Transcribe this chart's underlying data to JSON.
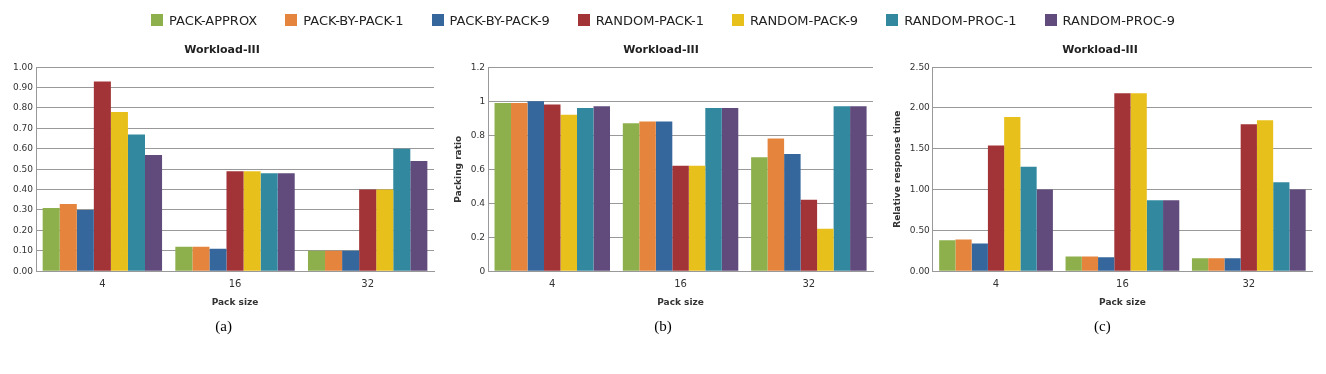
{
  "chart_data": [
    {
      "type": "bar",
      "title": "Workload-III",
      "xlabel": "Pack size",
      "categories": [
        "4",
        "16",
        "32"
      ],
      "ylim": [
        0,
        1
      ],
      "yticks": [
        {
          "value": 0,
          "label": "0.00"
        },
        {
          "value": 0.1,
          "label": "0.10"
        },
        {
          "value": 0.2,
          "label": "0.20"
        },
        {
          "value": 0.3,
          "label": "0.30"
        },
        {
          "value": 0.4,
          "label": "0.40"
        },
        {
          "value": 0.5,
          "label": "0.50"
        },
        {
          "value": 0.6,
          "label": "0.60"
        },
        {
          "value": 0.7,
          "label": "0.70"
        },
        {
          "value": 0.8,
          "label": "0.80"
        },
        {
          "value": 0.9,
          "label": "0.90"
        },
        {
          "value": 1,
          "label": "1.00"
        }
      ],
      "grid": "y",
      "legend": "top",
      "annotations": [
        "(a)"
      ],
      "series": [
        {
          "name": "PACK-APPROX",
          "color": "#8db04c",
          "values": [
            0.31,
            0.12,
            0.1
          ]
        },
        {
          "name": "PACK-BY-PACK-1",
          "color": "#e5843c",
          "values": [
            0.33,
            0.12,
            0.1
          ]
        },
        {
          "name": "PACK-BY-PACK-9",
          "color": "#35679c",
          "values": [
            0.3,
            0.11,
            0.1
          ]
        },
        {
          "name": "RANDOM-PACK-1",
          "color": "#a23437",
          "values": [
            0.93,
            0.49,
            0.4
          ]
        },
        {
          "name": "RANDOM-PACK-9",
          "color": "#e8c01c",
          "values": [
            0.78,
            0.49,
            0.4
          ]
        },
        {
          "name": "RANDOM-PROC-1",
          "color": "#32899f",
          "values": [
            0.67,
            0.48,
            0.6
          ]
        },
        {
          "name": "RANDOM-PROC-9",
          "color": "#614b7c",
          "values": [
            0.57,
            0.48,
            0.54
          ]
        }
      ]
    },
    {
      "type": "bar",
      "title": "Workload-III",
      "xlabel": "Pack size",
      "ylabel": "Packing ratio",
      "categories": [
        "4",
        "16",
        "32"
      ],
      "ylim": [
        0,
        1.2
      ],
      "yticks": [
        0,
        0.2,
        0.4,
        0.6,
        0.8,
        1,
        1.2
      ],
      "grid": "y",
      "annotations": [
        "(b)"
      ],
      "series": [
        {
          "color": "#8db04c",
          "values": [
            0.99,
            0.87,
            0.67
          ]
        },
        {
          "color": "#e5843c",
          "values": [
            0.99,
            0.88,
            0.78
          ]
        },
        {
          "color": "#35679c",
          "values": [
            1.0,
            0.88,
            0.69
          ]
        },
        {
          "color": "#a23437",
          "values": [
            0.98,
            0.62,
            0.42
          ]
        },
        {
          "color": "#e8c01c",
          "values": [
            0.92,
            0.62,
            0.25
          ]
        },
        {
          "color": "#32899f",
          "values": [
            0.96,
            0.96,
            0.97
          ]
        },
        {
          "color": "#614b7c",
          "values": [
            0.97,
            0.96,
            0.97
          ]
        }
      ]
    },
    {
      "type": "bar",
      "title": "Workload-III",
      "xlabel": "Pack size",
      "ylabel": "Relative response time",
      "categories": [
        "4",
        "16",
        "32"
      ],
      "ylim": [
        0,
        2.5
      ],
      "yticks": [
        {
          "value": 0,
          "label": "0.00"
        },
        {
          "value": 0.5,
          "label": "0.50"
        },
        {
          "value": 1,
          "label": "1.00"
        },
        {
          "value": 1.5,
          "label": "1.50"
        },
        {
          "value": 2,
          "label": "2.00"
        },
        {
          "value": 2.5,
          "label": "2.50"
        }
      ],
      "grid": "y",
      "annotations": [
        "(c)"
      ],
      "series": [
        {
          "color": "#8db04c",
          "values": [
            0.38,
            0.18,
            0.16
          ]
        },
        {
          "color": "#e5843c",
          "values": [
            0.39,
            0.18,
            0.16
          ]
        },
        {
          "color": "#35679c",
          "values": [
            0.34,
            0.17,
            0.16
          ]
        },
        {
          "color": "#a23437",
          "values": [
            1.54,
            2.18,
            1.8
          ]
        },
        {
          "color": "#e8c01c",
          "values": [
            1.89,
            2.18,
            1.85
          ]
        },
        {
          "color": "#32899f",
          "values": [
            1.28,
            0.87,
            1.09
          ]
        },
        {
          "color": "#614b7c",
          "values": [
            1.0,
            0.87,
            1.0
          ]
        }
      ]
    }
  ]
}
